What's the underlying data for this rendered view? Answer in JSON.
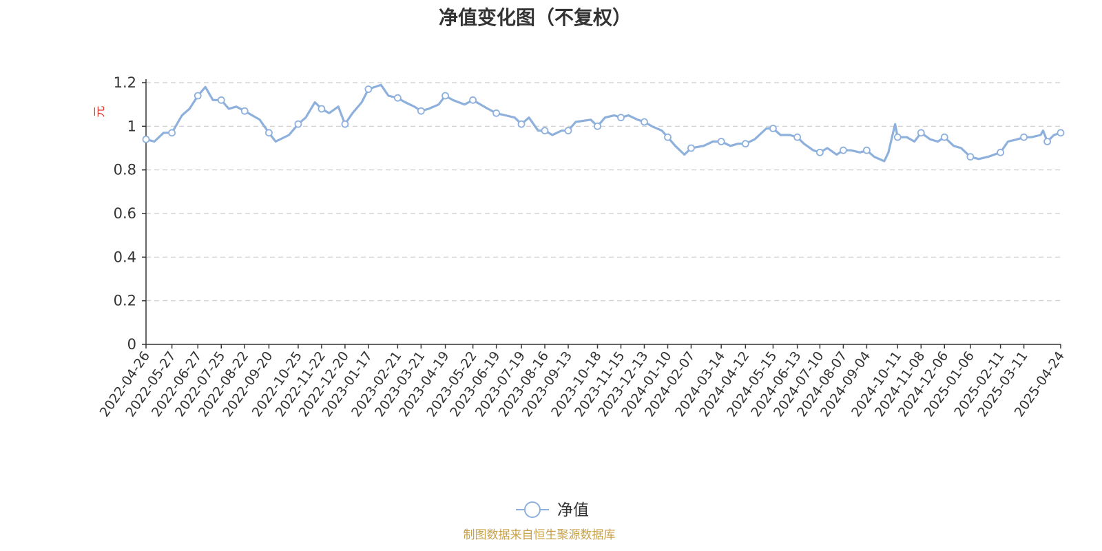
{
  "chart_data": {
    "type": "line",
    "title": "净值变化图（不复权）",
    "ylabel": "元",
    "ylim": [
      0,
      1.2
    ],
    "yticks": [
      "0",
      "0.2",
      "0.4",
      "0.6",
      "0.8",
      "1",
      "1.2"
    ],
    "grid": "horizontal dashed",
    "legend": "bottom-center",
    "xticks": [
      "2022-04-26",
      "2022-05-27",
      "2022-06-27",
      "2022-07-25",
      "2022-08-22",
      "2022-09-20",
      "2022-10-25",
      "2022-11-22",
      "2022-12-20",
      "2023-01-17",
      "2023-02-21",
      "2023-03-21",
      "2023-04-19",
      "2023-05-22",
      "2023-06-19",
      "2023-07-19",
      "2023-08-16",
      "2023-09-13",
      "2023-10-18",
      "2023-11-15",
      "2023-12-13",
      "2024-01-10",
      "2024-02-07",
      "2024-03-14",
      "2024-04-12",
      "2024-05-15",
      "2024-06-13",
      "2024-07-10",
      "2024-08-07",
      "2024-09-04",
      "2024-10-11",
      "2024-11-08",
      "2024-12-06",
      "2025-01-06",
      "2025-02-11",
      "2025-03-11",
      "2025-04-24"
    ],
    "series": [
      {
        "name": "净值",
        "color": "#8eb0dc",
        "x": [
          "2022-04-26",
          "2022-05-06",
          "2022-05-17",
          "2022-05-27",
          "2022-06-08",
          "2022-06-17",
          "2022-06-27",
          "2022-07-06",
          "2022-07-15",
          "2022-07-25",
          "2022-08-03",
          "2022-08-12",
          "2022-08-22",
          "2022-08-31",
          "2022-09-09",
          "2022-09-20",
          "2022-09-28",
          "2022-10-14",
          "2022-10-25",
          "2022-11-03",
          "2022-11-14",
          "2022-11-22",
          "2022-12-01",
          "2022-12-12",
          "2022-12-20",
          "2022-12-29",
          "2023-01-09",
          "2023-01-17",
          "2023-02-01",
          "2023-02-10",
          "2023-02-21",
          "2023-03-02",
          "2023-03-13",
          "2023-03-21",
          "2023-03-30",
          "2023-04-11",
          "2023-04-19",
          "2023-04-28",
          "2023-05-12",
          "2023-05-22",
          "2023-05-31",
          "2023-06-09",
          "2023-06-19",
          "2023-06-30",
          "2023-07-11",
          "2023-07-19",
          "2023-07-28",
          "2023-08-08",
          "2023-08-16",
          "2023-08-25",
          "2023-09-05",
          "2023-09-13",
          "2023-09-22",
          "2023-10-10",
          "2023-10-18",
          "2023-10-27",
          "2023-11-07",
          "2023-11-15",
          "2023-11-24",
          "2023-12-05",
          "2023-12-13",
          "2023-12-22",
          "2024-01-03",
          "2024-01-10",
          "2024-01-19",
          "2024-01-30",
          "2024-02-07",
          "2024-02-22",
          "2024-03-04",
          "2024-03-14",
          "2024-03-25",
          "2024-04-03",
          "2024-04-12",
          "2024-04-23",
          "2024-05-07",
          "2024-05-15",
          "2024-05-24",
          "2024-06-04",
          "2024-06-13",
          "2024-06-21",
          "2024-07-02",
          "2024-07-10",
          "2024-07-19",
          "2024-07-30",
          "2024-08-07",
          "2024-08-16",
          "2024-08-27",
          "2024-09-04",
          "2024-09-13",
          "2024-09-25",
          "2024-09-30",
          "2024-10-08",
          "2024-10-11",
          "2024-10-22",
          "2024-10-31",
          "2024-11-08",
          "2024-11-19",
          "2024-11-28",
          "2024-12-06",
          "2024-12-17",
          "2024-12-26",
          "2025-01-06",
          "2025-01-16",
          "2025-01-27",
          "2025-02-11",
          "2025-02-20",
          "2025-03-03",
          "2025-03-11",
          "2025-03-20",
          "2025-03-31",
          "2025-04-03",
          "2025-04-08",
          "2025-04-16",
          "2025-04-24"
        ],
        "values": [
          0.94,
          0.93,
          0.97,
          0.97,
          1.05,
          1.08,
          1.14,
          1.18,
          1.12,
          1.12,
          1.08,
          1.09,
          1.07,
          1.05,
          1.03,
          0.97,
          0.93,
          0.96,
          1.01,
          1.04,
          1.11,
          1.08,
          1.06,
          1.09,
          1.01,
          1.06,
          1.11,
          1.17,
          1.19,
          1.14,
          1.13,
          1.11,
          1.09,
          1.07,
          1.08,
          1.1,
          1.14,
          1.12,
          1.1,
          1.12,
          1.1,
          1.08,
          1.06,
          1.05,
          1.04,
          1.01,
          1.04,
          0.98,
          0.98,
          0.96,
          0.98,
          0.98,
          1.02,
          1.03,
          1.0,
          1.04,
          1.05,
          1.04,
          1.05,
          1.03,
          1.02,
          1.0,
          0.98,
          0.95,
          0.91,
          0.87,
          0.9,
          0.91,
          0.93,
          0.93,
          0.91,
          0.92,
          0.92,
          0.94,
          0.99,
          0.99,
          0.96,
          0.96,
          0.95,
          0.92,
          0.89,
          0.88,
          0.9,
          0.87,
          0.89,
          0.89,
          0.88,
          0.89,
          0.86,
          0.84,
          0.88,
          1.01,
          0.95,
          0.95,
          0.93,
          0.97,
          0.94,
          0.93,
          0.95,
          0.91,
          0.9,
          0.86,
          0.85,
          0.86,
          0.88,
          0.93,
          0.94,
          0.95,
          0.95,
          0.96,
          0.98,
          0.93,
          0.96,
          0.97
        ],
        "markers": [
          "2022-04-26",
          "2022-05-27",
          "2022-06-27",
          "2022-07-25",
          "2022-08-22",
          "2022-09-20",
          "2022-10-25",
          "2022-11-22",
          "2022-12-20",
          "2023-01-17",
          "2023-02-21",
          "2023-03-21",
          "2023-04-19",
          "2023-05-22",
          "2023-06-19",
          "2023-07-19",
          "2023-08-16",
          "2023-09-13",
          "2023-10-18",
          "2023-11-15",
          "2023-12-13",
          "2024-01-10",
          "2024-02-07",
          "2024-03-14",
          "2024-04-12",
          "2024-05-15",
          "2024-06-13",
          "2024-07-10",
          "2024-08-07",
          "2024-09-04",
          "2024-10-11",
          "2024-11-08",
          "2024-12-06",
          "2025-01-06",
          "2025-02-11",
          "2025-03-11",
          "2025-04-08",
          "2025-04-24"
        ]
      }
    ]
  },
  "legend_label": "净值",
  "source_note": "制图数据来自恒生聚源数据库",
  "colors": {
    "line": "#8eb0dc",
    "axis": "#333333",
    "grid": "#cccccc",
    "ylabel": "#e03c31",
    "source": "#c8a24a"
  }
}
